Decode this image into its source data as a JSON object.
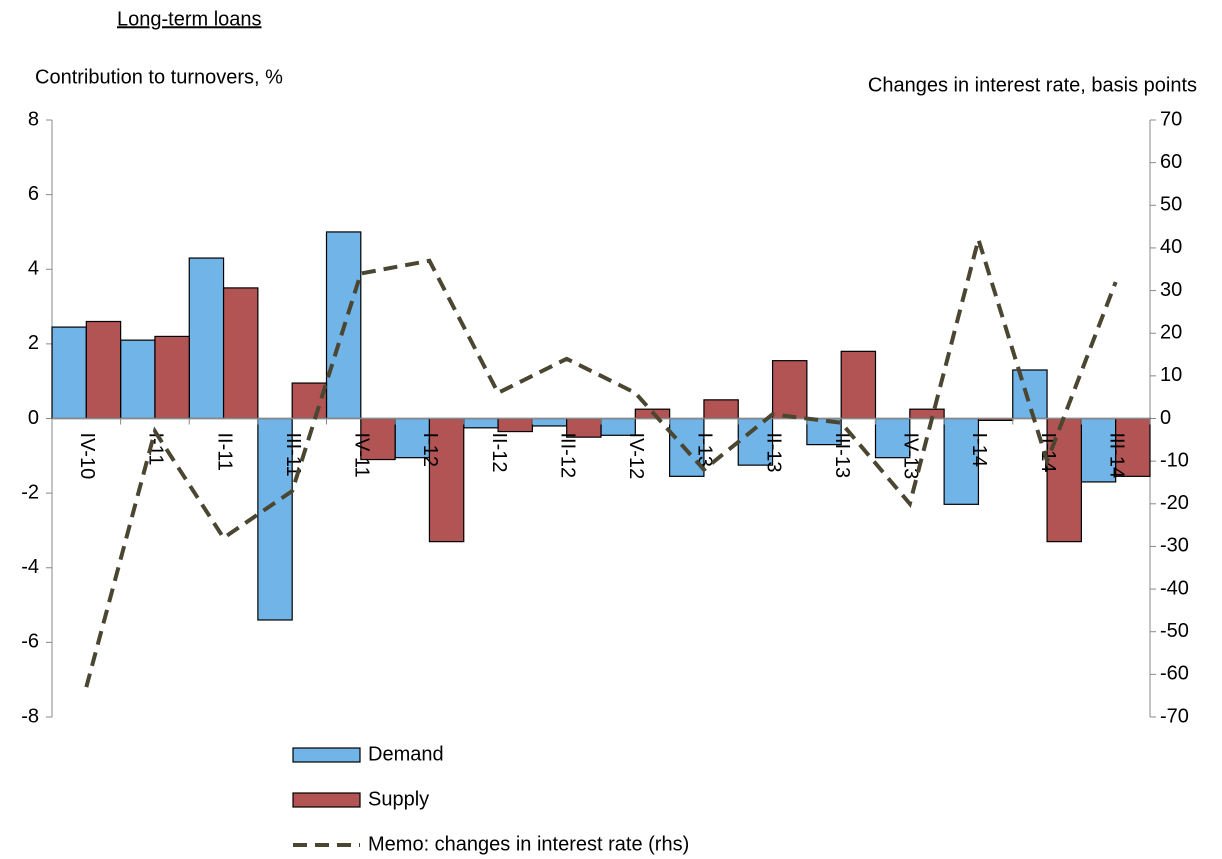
{
  "chart_data": {
    "type": "bar_line",
    "title": "Long-term loans",
    "y_label": "Contribution to turnovers, %",
    "y2_label": "Changes in interest rate, basis points",
    "categories": [
      "IV-10",
      "I-11",
      "II-11",
      "III-11",
      "IV-11",
      "I-12",
      "II-12",
      "III-12",
      "IV-12",
      "I-13",
      "II-13",
      "III-13",
      "IV-13",
      "I-14",
      "II-14",
      "III-14"
    ],
    "series": [
      {
        "name": "Demand",
        "type": "bar",
        "color": "#71b4e8",
        "values": [
          2.45,
          2.1,
          4.3,
          -5.4,
          5.0,
          -1.05,
          -0.25,
          -0.2,
          -0.45,
          -1.55,
          -1.25,
          -0.7,
          -1.05,
          -2.3,
          1.3,
          -1.7
        ]
      },
      {
        "name": "Supply",
        "type": "bar",
        "color": "#b35454",
        "values": [
          2.6,
          2.2,
          3.5,
          0.95,
          -1.1,
          -3.3,
          -0.35,
          -0.5,
          0.25,
          0.5,
          1.55,
          1.8,
          0.25,
          -0.05,
          -3.3,
          -1.55
        ]
      },
      {
        "name": "Memo: changes in interest rate (rhs)",
        "type": "line",
        "axis": "y2",
        "color": "#4b4631",
        "values": [
          -63,
          -3,
          -28,
          -17,
          34,
          37,
          6,
          14,
          6,
          -12,
          1,
          -1,
          -20,
          42,
          -10,
          32
        ]
      }
    ],
    "ylim": [
      -8,
      8
    ],
    "yticks": [
      -8,
      -6,
      -4,
      -2,
      0,
      2,
      4,
      6,
      8
    ],
    "y2lim": [
      -70,
      70
    ],
    "y2ticks": [
      -70,
      -60,
      -50,
      -40,
      -30,
      -20,
      -10,
      0,
      10,
      20,
      30,
      40,
      50,
      60,
      70
    ],
    "grid": false
  }
}
